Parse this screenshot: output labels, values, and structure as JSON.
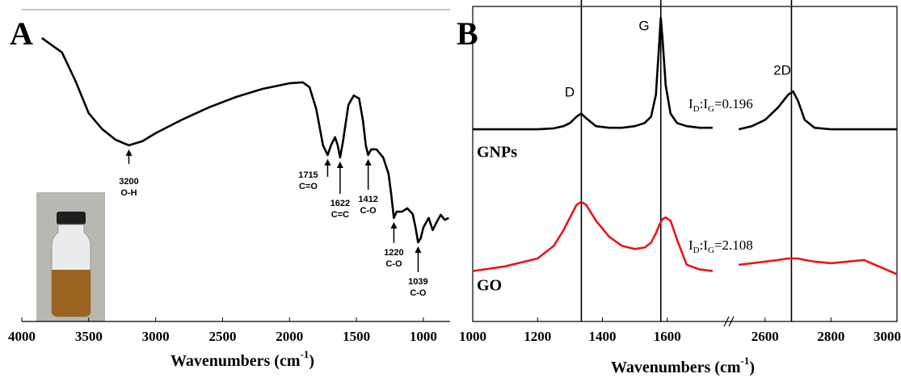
{
  "chart_data": [
    {
      "type": "line",
      "panel": "A",
      "x_label": [
        "Wavenumbers (cm",
        "-1",
        ")"
      ],
      "xlim": [
        4000,
        800
      ],
      "xticks": [
        4000,
        3500,
        3000,
        2500,
        2000,
        1500,
        1000
      ],
      "ylim": [
        0,
        100
      ],
      "series": [
        {
          "color": "#000000",
          "x": [
            3850,
            3700,
            3600,
            3500,
            3400,
            3300,
            3200,
            3100,
            3000,
            2800,
            2600,
            2400,
            2200,
            2000,
            1900,
            1850,
            1800,
            1750,
            1715,
            1690,
            1660,
            1640,
            1622,
            1600,
            1560,
            1520,
            1480,
            1450,
            1430,
            1412,
            1390,
            1350,
            1300,
            1260,
            1240,
            1220,
            1200,
            1160,
            1120,
            1080,
            1060,
            1039,
            1020,
            1000,
            960,
            930,
            900,
            870,
            840,
            810
          ],
          "values": [
            90.9,
            86.3,
            77.2,
            66.8,
            61.7,
            58.3,
            56.5,
            57.8,
            60.4,
            64.8,
            68.7,
            72,
            74.6,
            76.4,
            76.7,
            75.1,
            68.1,
            56.5,
            53.4,
            56.5,
            59.1,
            56.5,
            52.6,
            57.8,
            69.4,
            72.5,
            71.5,
            64.2,
            56.5,
            53.4,
            55.2,
            55.2,
            52.6,
            47.4,
            40.9,
            33.2,
            35.2,
            35.2,
            36.3,
            34.5,
            30.6,
            25.4,
            26.7,
            30.1,
            33.2,
            29.3,
            31.9,
            34.2,
            32.6,
            33.2
          ]
        }
      ],
      "annotations": [
        {
          "x": 3200,
          "label": "O-H"
        },
        {
          "x": 1715,
          "label": "C=O"
        },
        {
          "x": 1622,
          "label": "C=C"
        },
        {
          "x": 1412,
          "label": "C-O"
        },
        {
          "x": 1220,
          "label": "C-O"
        },
        {
          "x": 1039,
          "label": "C-O"
        }
      ]
    },
    {
      "type": "line",
      "panel": "B",
      "x_label": [
        "Wavenumbers (cm",
        "-1",
        ")"
      ],
      "xlim": [
        1000,
        3000
      ],
      "xbreak": [
        1780,
        2500
      ],
      "xticks": [
        1000,
        1200,
        1400,
        1600,
        2600,
        2800,
        3000
      ],
      "ylim": [
        0,
        100
      ],
      "x": [
        1000,
        1100,
        1200,
        1250,
        1280,
        1300,
        1320,
        1335,
        1350,
        1380,
        1420,
        1460,
        1500,
        1530,
        1550,
        1565,
        1575,
        1580,
        1585,
        1595,
        1610,
        1630,
        1660,
        1700,
        1740,
        1780,
        2520,
        2560,
        2600,
        2640,
        2670,
        2685,
        2700,
        2720,
        2750,
        2800,
        2900,
        3000
      ],
      "series": [
        {
          "name": "GNPs",
          "color": "#000000",
          "ratio": [
            "I",
            "D",
            ":I",
            "G",
            "=0.196"
          ],
          "values": [
            61,
            61,
            61,
            61.3,
            62,
            63,
            65,
            66,
            64.5,
            62,
            61.5,
            61.5,
            62,
            63,
            65,
            72,
            88,
            96.4,
            90,
            75,
            66,
            63,
            62,
            61.5,
            61.5,
            null,
            61,
            62,
            64,
            68,
            72,
            73,
            70,
            64,
            61.5,
            61,
            61,
            61
          ]
        },
        {
          "name": "GO",
          "color": "#e8161b",
          "ratio": [
            "I",
            "D",
            ":I",
            "G",
            "=2.108"
          ],
          "values": [
            16,
            17.5,
            20,
            24,
            29,
            33,
            37,
            38,
            37,
            32,
            27,
            24,
            23,
            23.5,
            25,
            28,
            30.5,
            31.5,
            32.5,
            33,
            32,
            26,
            18,
            16.5,
            16,
            null,
            18,
            18.5,
            19,
            19.5,
            20,
            20,
            20,
            19.5,
            19,
            18.5,
            19.5,
            15
          ]
        }
      ],
      "peaks": [
        {
          "x": 1335,
          "label": "D"
        },
        {
          "x": 1580,
          "label": "G"
        },
        {
          "x": 2680,
          "label": "2D"
        }
      ]
    }
  ]
}
